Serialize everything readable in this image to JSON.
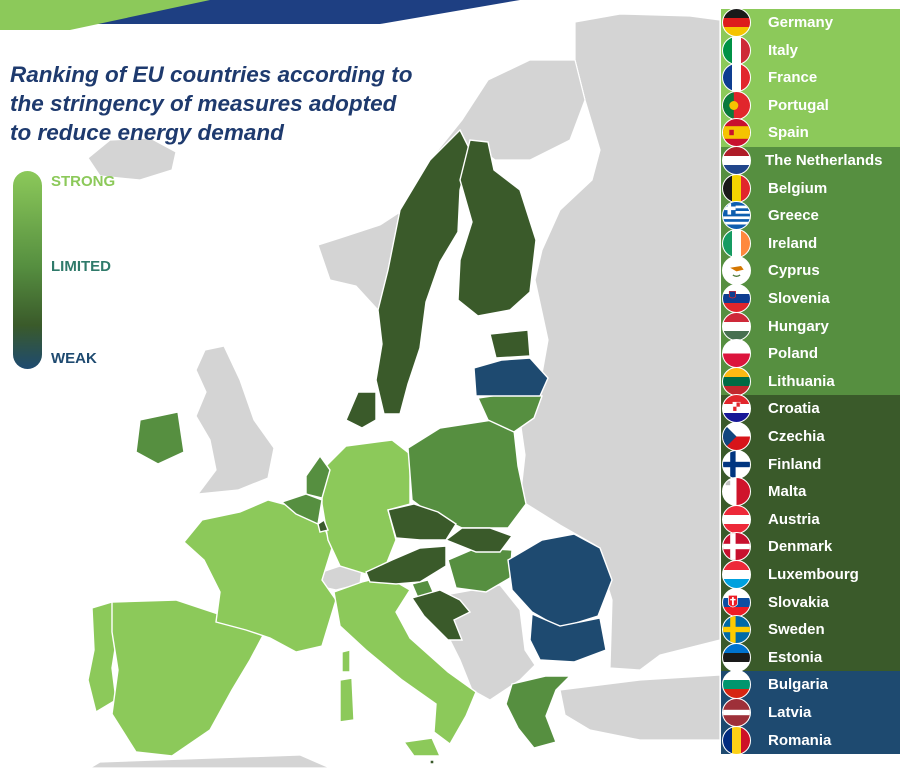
{
  "title_lines": [
    "Ranking of EU countries according to",
    "the stringency of measures adopted",
    "to reduce energy demand"
  ],
  "legend": {
    "strong": "STRONG",
    "limited": "LIMITED",
    "weak": "WEAK",
    "strong_color": "#8cc95a",
    "limited_color": "#568f40",
    "weak_color": "#1e4a70"
  },
  "colors": {
    "strong": "#8cc95a",
    "limited": "#568f40",
    "dark": "#3a5a2a",
    "weak": "#1e4a70",
    "non_eu": "#d4d4d4",
    "sea": "#ffffff",
    "top_band_blue": "#1e3f82",
    "top_band_green": "#8cc95a"
  },
  "tiers": [
    {
      "tier": "strong",
      "countries": [
        "Germany",
        "Italy",
        "France",
        "Portugal",
        "Spain"
      ]
    },
    {
      "tier": "limited",
      "countries": [
        "The Netherlands",
        "Belgium",
        "Greece",
        "Ireland",
        "Cyprus",
        "Slovenia",
        "Hungary",
        "Poland",
        "Lithuania"
      ]
    },
    {
      "tier": "dark",
      "countries": [
        "Croatia",
        "Czechia",
        "Finland",
        "Malta",
        "Austria",
        "Denmark",
        "Luxembourg",
        "Slovakia",
        "Sweden",
        "Estonia"
      ]
    },
    {
      "tier": "weak",
      "countries": [
        "Bulgaria",
        "Latvia",
        "Romania"
      ]
    }
  ],
  "flags": {
    "Germany": "germany-flag-icon",
    "Italy": "italy-flag-icon",
    "France": "france-flag-icon",
    "Portugal": "portugal-flag-icon",
    "Spain": "spain-flag-icon",
    "The Netherlands": "netherlands-flag-icon",
    "Belgium": "belgium-flag-icon",
    "Greece": "greece-flag-icon",
    "Ireland": "ireland-flag-icon",
    "Cyprus": "cyprus-flag-icon",
    "Slovenia": "slovenia-flag-icon",
    "Hungary": "hungary-flag-icon",
    "Poland": "poland-flag-icon",
    "Lithuania": "lithuania-flag-icon",
    "Croatia": "croatia-flag-icon",
    "Czechia": "czechia-flag-icon",
    "Finland": "finland-flag-icon",
    "Malta": "malta-flag-icon",
    "Austria": "austria-flag-icon",
    "Denmark": "denmark-flag-icon",
    "Luxembourg": "luxembourg-flag-icon",
    "Slovakia": "slovakia-flag-icon",
    "Sweden": "sweden-flag-icon",
    "Estonia": "estonia-flag-icon",
    "Bulgaria": "bulgaria-flag-icon",
    "Latvia": "latvia-flag-icon",
    "Romania": "romania-flag-icon"
  }
}
